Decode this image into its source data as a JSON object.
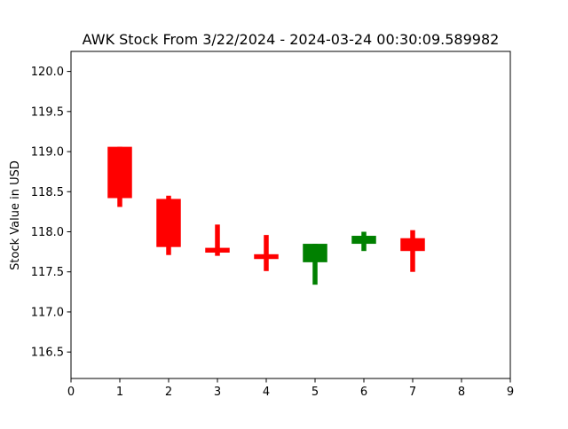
{
  "chart_data": {
    "type": "candlestick",
    "title": "AWK Stock From 3/22/2024 - 2024-03-24 00:30:09.589982",
    "xlabel": "",
    "ylabel": "Stock Value in USD",
    "xlim": [
      0,
      9
    ],
    "ylim": [
      116.17,
      120.25
    ],
    "x_ticks": [
      0,
      1,
      2,
      3,
      4,
      5,
      6,
      7,
      8,
      9
    ],
    "y_ticks": [
      116.5,
      117.0,
      117.5,
      118.0,
      118.5,
      119.0,
      119.5,
      120.0
    ],
    "grid": false,
    "up_color": "#008000",
    "down_color": "#ff0000",
    "candles": [
      {
        "x": 1,
        "open": 119.06,
        "close": 118.42,
        "high": 119.06,
        "low": 118.31
      },
      {
        "x": 2,
        "open": 118.41,
        "close": 117.81,
        "high": 118.45,
        "low": 117.71
      },
      {
        "x": 3,
        "open": 117.8,
        "close": 117.74,
        "high": 118.09,
        "low": 117.7
      },
      {
        "x": 4,
        "open": 117.72,
        "close": 117.66,
        "high": 117.96,
        "low": 117.51
      },
      {
        "x": 5,
        "open": 117.62,
        "close": 117.85,
        "high": 117.85,
        "low": 117.34
      },
      {
        "x": 6,
        "open": 117.85,
        "close": 117.95,
        "high": 118.0,
        "low": 117.76
      },
      {
        "x": 7,
        "open": 117.92,
        "close": 117.76,
        "high": 118.02,
        "low": 117.5
      }
    ]
  }
}
